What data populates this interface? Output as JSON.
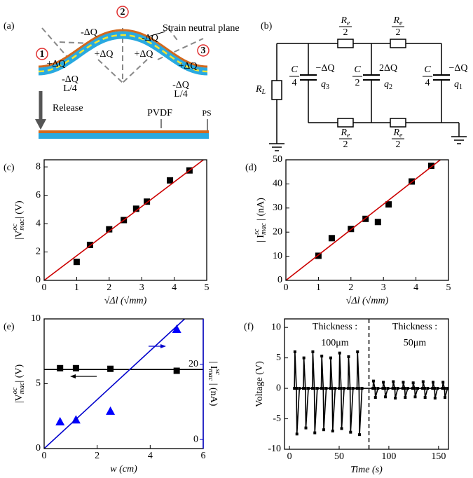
{
  "panel_a": {
    "label": "(a)",
    "annotation": "Strain neutral plane",
    "markers": [
      "1",
      "2",
      "3"
    ],
    "charges": [
      "+ΔQ",
      "-ΔQ",
      "+ΔQ",
      "+ΔQ",
      "-ΔQ",
      "+ΔQ",
      "-ΔQ",
      "-ΔQ"
    ],
    "lengths": [
      "L/4",
      "L/4"
    ],
    "release": "Release",
    "layers": [
      "PVDF",
      "PS"
    ]
  },
  "panel_b": {
    "label": "(b)",
    "load": {
      "symbol": "R",
      "subscript": "L"
    },
    "resistors": [
      {
        "symbol": "R",
        "subscript": "e",
        "denominator": "2"
      },
      {
        "symbol": "R",
        "subscript": "e",
        "denominator": "2"
      },
      {
        "symbol": "R",
        "subscript": "e",
        "denominator": "2"
      },
      {
        "symbol": "R",
        "subscript": "e",
        "denominator": "2"
      }
    ],
    "capacitors": [
      {
        "symbol": "C",
        "denominator": "4",
        "charge": "−ΔQ",
        "q": "q",
        "subscript": "3"
      },
      {
        "symbol": "C",
        "denominator": "2",
        "charge": "2ΔQ",
        "q": "q",
        "subscript": "2"
      },
      {
        "symbol": "C",
        "denominator": "4",
        "charge": "−ΔQ",
        "q": "q",
        "subscript": "1"
      }
    ]
  },
  "chart_data": [
    {
      "type": "scatter",
      "panel": "(c)",
      "xlabel": "√Δl (√mm)",
      "ylabel": {
        "base": "|V",
        "sub": "mac",
        "sup": "oc",
        "rest": "| (V)"
      },
      "xlim": [
        0,
        5
      ],
      "ylim": [
        0,
        8.5
      ],
      "xticks": [
        0,
        1,
        2,
        3,
        4,
        5
      ],
      "yticks": [
        0,
        2,
        4,
        6,
        8
      ],
      "series": [
        {
          "type": "scatter",
          "marker": "square",
          "color": "#000000",
          "x": [
            1,
            1.41,
            2,
            2.45,
            2.83,
            3.16,
            3.87,
            4.47
          ],
          "values": [
            1.3,
            2.5,
            3.6,
            4.25,
            5.05,
            5.55,
            7.05,
            7.75
          ]
        },
        {
          "type": "line",
          "color": "#cc0000",
          "x": [
            0,
            4.9
          ],
          "values": [
            0,
            8.5
          ]
        }
      ]
    },
    {
      "type": "scatter",
      "panel": "(d)",
      "xlabel": "√Δl (√mm)",
      "ylabel": {
        "base": "| I",
        "sub": "mac",
        "sup": "sc",
        "rest": " | (nA)"
      },
      "xlim": [
        0,
        5
      ],
      "ylim": [
        0,
        50
      ],
      "xticks": [
        0,
        1,
        2,
        3,
        4,
        5
      ],
      "yticks": [
        0,
        10,
        20,
        30,
        40,
        50
      ],
      "series": [
        {
          "type": "scatter",
          "marker": "square",
          "color": "#000000",
          "x": [
            1,
            1.41,
            2,
            2.45,
            2.83,
            3.16,
            3.87,
            4.47
          ],
          "values": [
            10.2,
            17.5,
            21.3,
            25.5,
            24.2,
            31.5,
            41,
            47.5
          ]
        },
        {
          "type": "line",
          "color": "#cc0000",
          "x": [
            0,
            4.75
          ],
          "values": [
            0,
            50
          ]
        }
      ]
    },
    {
      "type": "scatter",
      "panel": "(e)",
      "xlabel": "w (cm)",
      "ylabel": {
        "base": "|V",
        "sub": "mac",
        "sup": "oc",
        "rest": "| (V)"
      },
      "y2label": {
        "base": "| I",
        "sub": "mac",
        "sup": "sc",
        "rest": " | (nA)"
      },
      "y2color": "#0000cc",
      "xlim": [
        0,
        6
      ],
      "ylim": [
        0,
        10
      ],
      "y2lim": [
        -2.4,
        32.1
      ],
      "xticks": [
        0,
        2,
        4,
        6
      ],
      "yticks": [
        0,
        5,
        10
      ],
      "y2ticks": [
        0,
        20
      ],
      "series": [
        {
          "type": "scatter",
          "marker": "square",
          "color": "#000000",
          "x": [
            0.6,
            1.2,
            2.5,
            5
          ],
          "values": [
            6.2,
            6.2,
            6.15,
            6.0
          ]
        },
        {
          "type": "line",
          "color": "#000000",
          "x": [
            0,
            6
          ],
          "values": [
            6.1,
            6.1
          ]
        },
        {
          "type": "scatter",
          "marker": "triangle",
          "color": "#0000ff",
          "axis": "y2",
          "x": [
            0.6,
            1.2,
            2.5,
            5
          ],
          "values": [
            4.7,
            5.2,
            7.5,
            29.3
          ]
        },
        {
          "type": "line",
          "color": "#0000cc",
          "axis": "y2",
          "x": [
            0,
            5.3
          ],
          "values": [
            -2.4,
            32.1
          ]
        }
      ]
    },
    {
      "type": "line",
      "panel": "(f)",
      "xlabel": "Time (s)",
      "ylabel": "Voltage (V)",
      "xlim": [
        -5,
        160
      ],
      "ylim": [
        -10,
        11.4
      ],
      "xticks": [
        0,
        50,
        100,
        150
      ],
      "yticks": [
        -10,
        -5,
        0,
        5,
        10
      ],
      "vline": 80,
      "annotations": [
        "Thickness :",
        "100μm",
        "Thickness :",
        "50μm"
      ],
      "series": [
        {
          "type": "line",
          "marker": "square",
          "color": "#000000",
          "x": [
            5,
            5.5,
            7,
            7.5,
            10,
            14,
            14.5,
            16,
            16.5,
            19,
            23,
            23.5,
            25,
            25.5,
            28,
            32,
            32.5,
            34,
            34.5,
            37,
            41,
            41.5,
            43,
            43.5,
            46,
            50,
            50.5,
            52,
            52.5,
            55,
            59,
            59.5,
            61,
            61.5,
            64,
            68,
            68.5,
            70,
            70.5,
            73,
            84,
            84.5,
            86,
            86.5,
            89,
            94,
            94.5,
            96,
            96.5,
            99,
            104,
            104.5,
            106,
            106.5,
            109,
            114,
            114.5,
            116,
            116.5,
            119,
            124,
            124.5,
            126,
            126.5,
            129,
            134,
            134.5,
            136,
            136.5,
            139,
            144,
            144.5,
            146,
            146.5,
            149,
            154,
            154.5,
            156,
            156.5,
            159
          ],
          "values": [
            0,
            6,
            0,
            -7.5,
            0,
            0,
            5,
            0,
            -6.5,
            0,
            0,
            6,
            0,
            -7.3,
            0,
            0,
            5.3,
            0,
            -6.8,
            0,
            0,
            5,
            0,
            -7,
            0,
            0,
            5.8,
            0,
            -6.6,
            0,
            0,
            5.2,
            0,
            -7.2,
            0,
            0,
            6,
            0,
            -7.6,
            0,
            0,
            1.2,
            0,
            -1.5,
            0,
            0,
            1,
            0,
            -1.4,
            0,
            0,
            1.1,
            0,
            -1.6,
            0,
            0,
            1,
            0,
            -1.5,
            0,
            0,
            0.9,
            0,
            -1.4,
            0,
            0,
            1.1,
            0,
            -1.5,
            0,
            0,
            1,
            0,
            -1.6,
            0,
            0,
            1,
            0,
            -1.5,
            0
          ]
        }
      ]
    }
  ]
}
